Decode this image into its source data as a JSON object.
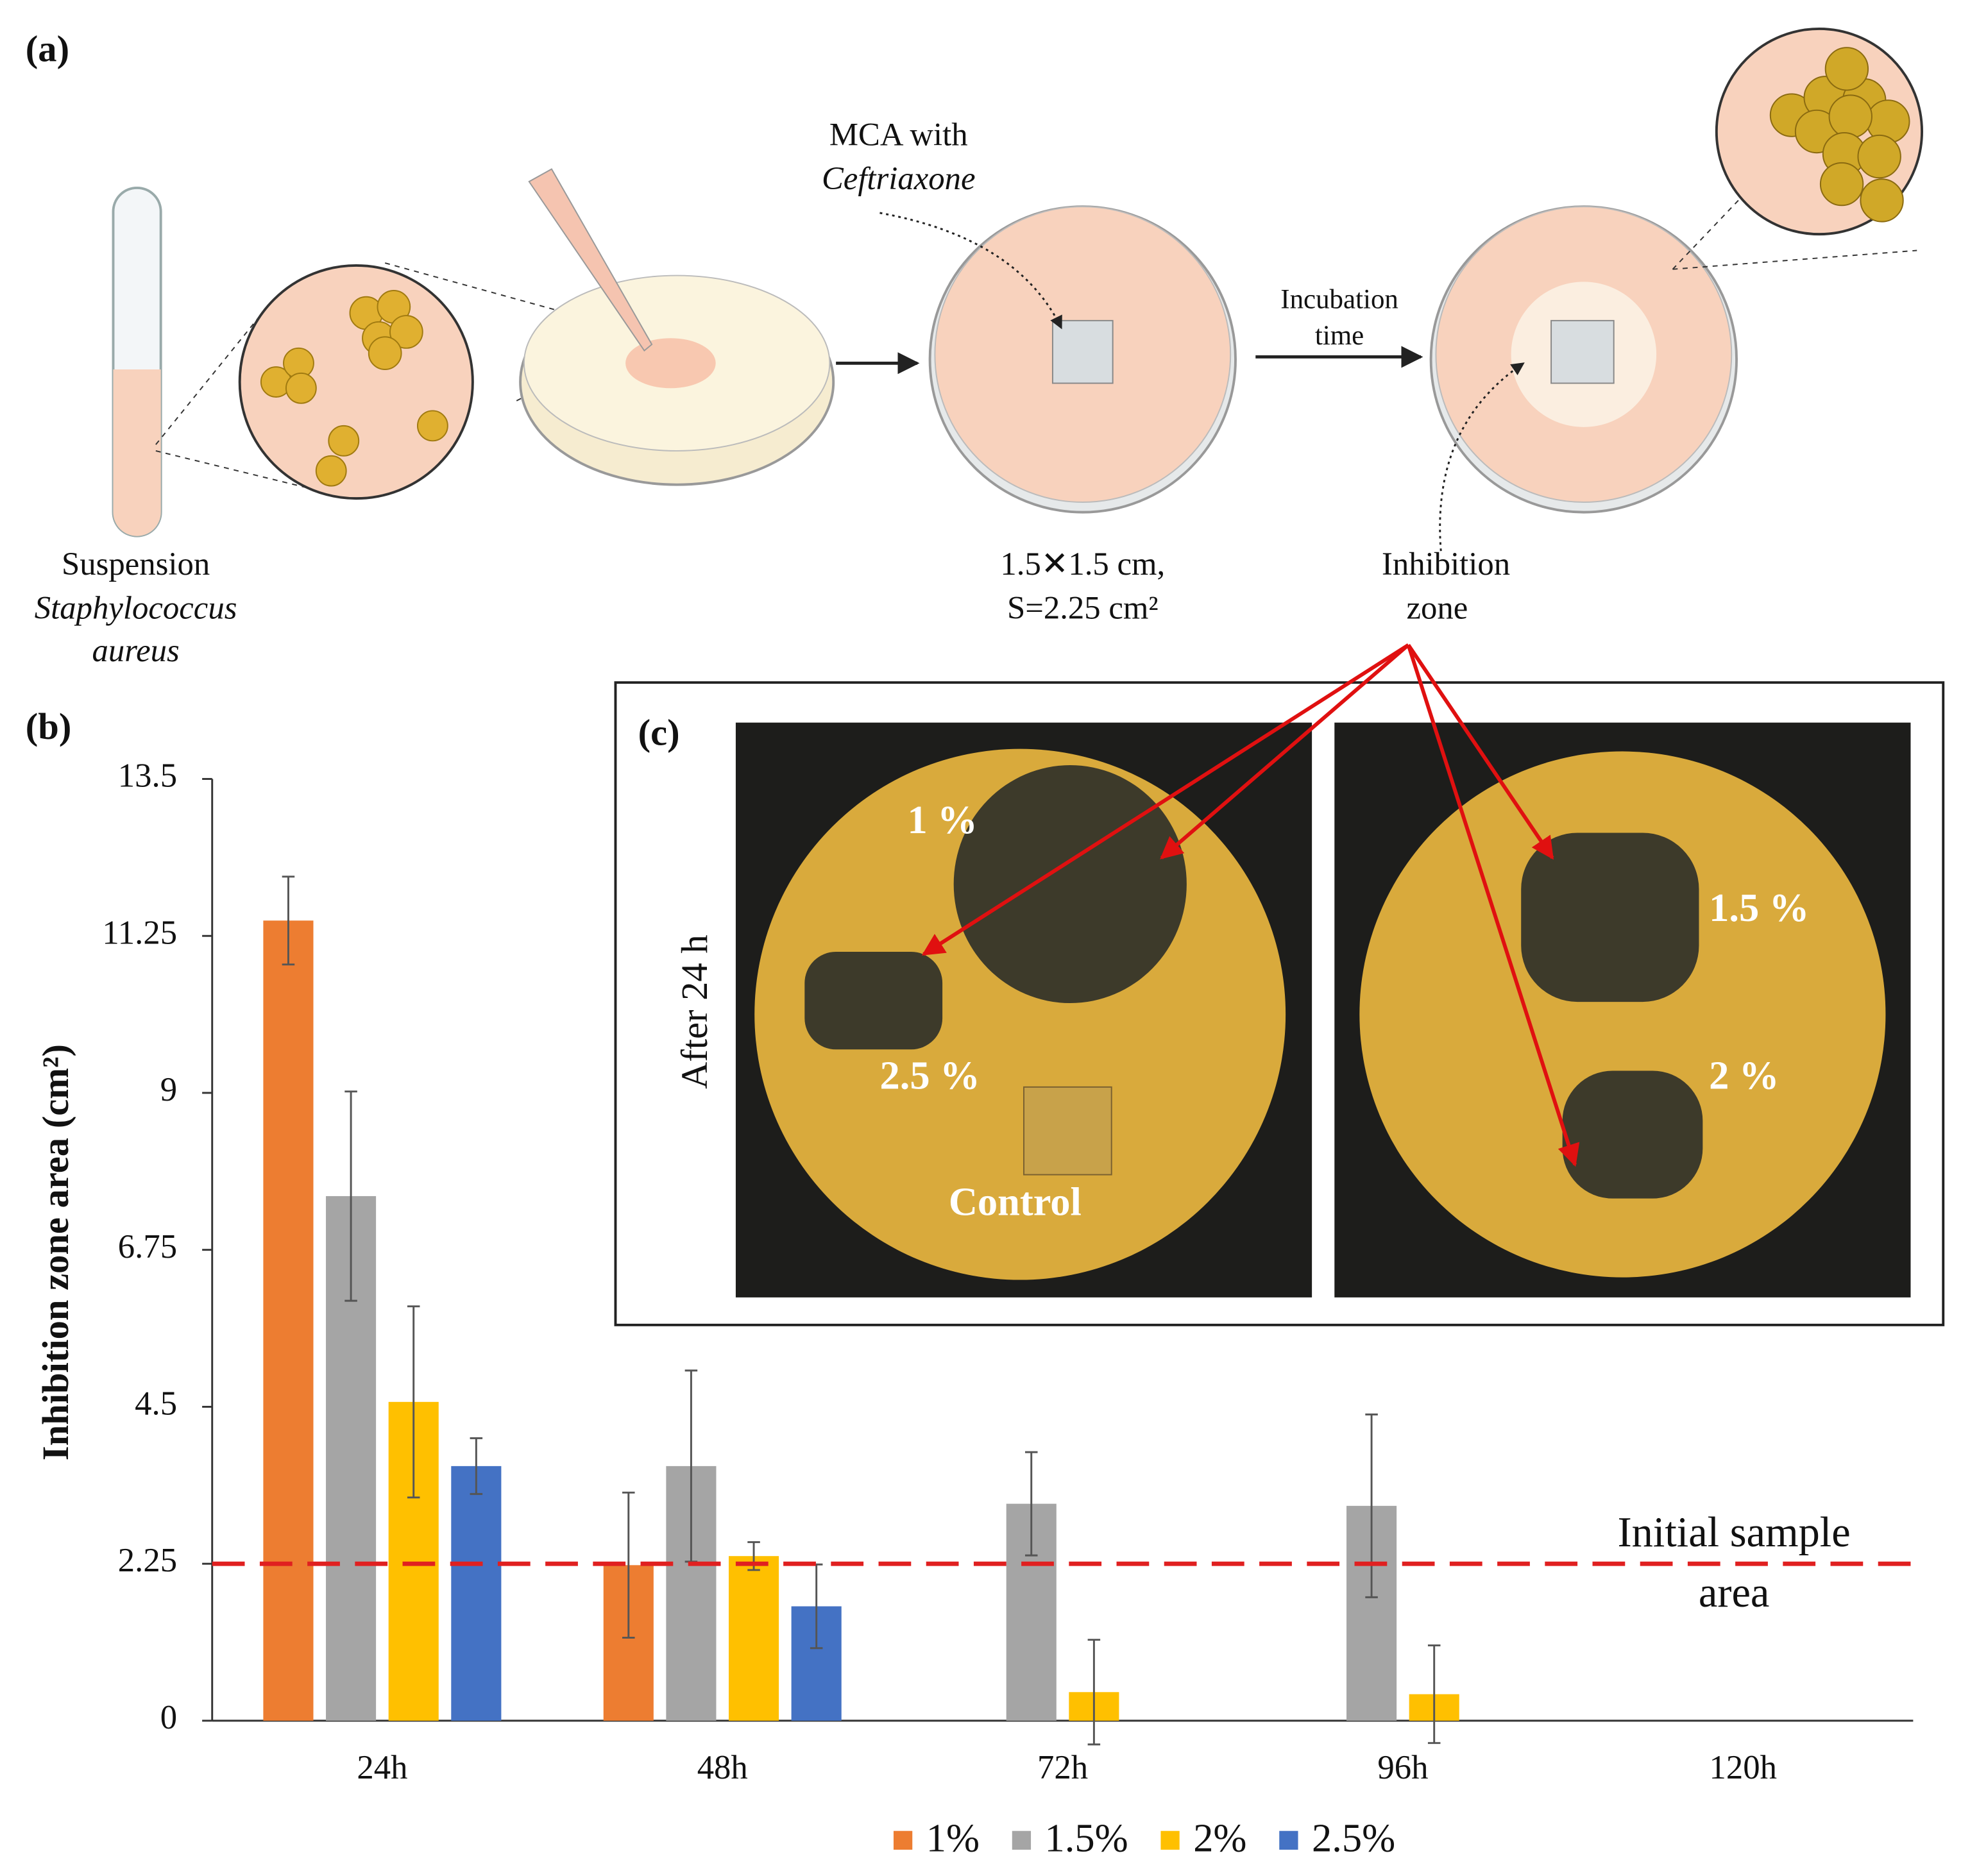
{
  "panel_a": {
    "label": "(a)",
    "mca": [
      "MCA with",
      "Ceftriaxone"
    ],
    "incubation": [
      "Incubation",
      "time"
    ],
    "suspension": [
      "Suspension",
      "Staphylococcus",
      "aureus"
    ],
    "size": [
      "1.5✕1.5 cm,",
      "S=2.25 cm²"
    ],
    "inhibition": [
      "Inhibition",
      "zone"
    ]
  },
  "panel_b": {
    "label": "(b)"
  },
  "panel_c": {
    "label": "(c)",
    "side": "After 24 h",
    "plate_labels": [
      "1 %",
      "2.5 %",
      "Control",
      "1.5 %",
      "2 %"
    ]
  },
  "chart_data": {
    "type": "bar",
    "ylabel": "Inhibition zone area (cm²)",
    "categories": [
      "24h",
      "48h",
      "72h",
      "96h",
      "120h"
    ],
    "series": [
      {
        "name": "1%",
        "color": "#ed7d31",
        "values": [
          11.47,
          2.23,
          null,
          null,
          null
        ],
        "errors": [
          0.63,
          1.04,
          null,
          null,
          null
        ]
      },
      {
        "name": "1.5%",
        "color": "#a5a5a5",
        "values": [
          7.52,
          3.65,
          3.11,
          3.08,
          null
        ],
        "errors": [
          1.5,
          1.37,
          0.74,
          1.31,
          null
        ]
      },
      {
        "name": "2%",
        "color": "#ffc000",
        "values": [
          4.57,
          2.36,
          0.41,
          0.38,
          null
        ],
        "errors": [
          1.37,
          0.2,
          0.75,
          0.7,
          null
        ]
      },
      {
        "name": "2.5%",
        "color": "#4472c4",
        "values": [
          3.65,
          1.64,
          null,
          null,
          null
        ],
        "errors": [
          0.4,
          0.6,
          null,
          null,
          null
        ]
      }
    ],
    "ylim": [
      0,
      13.5
    ],
    "yticks": [
      0,
      2.25,
      4.5,
      6.75,
      9,
      11.25,
      13.5
    ],
    "reference_line": {
      "value": 2.25,
      "label": [
        "Initial sample",
        "area"
      ],
      "color": "#e02020"
    }
  }
}
